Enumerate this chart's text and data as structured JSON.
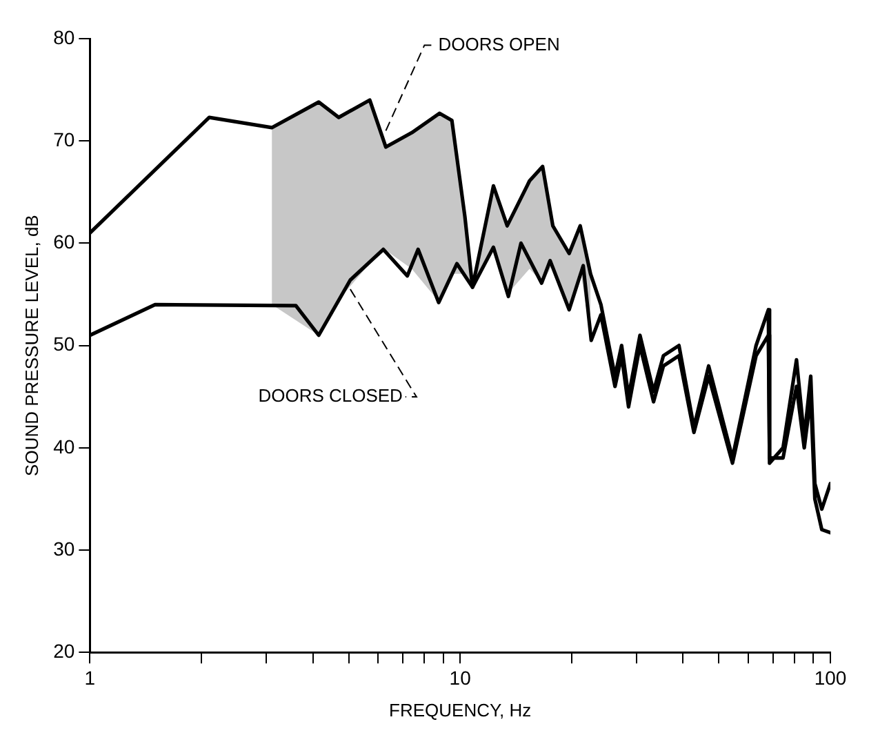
{
  "chart_data": {
    "type": "line",
    "xlabel": "FREQUENCY, Hz",
    "ylabel": "SOUND PRESSURE LEVEL, dB",
    "log": "x",
    "grid": false,
    "legend": false,
    "marker": "none",
    "line_style": "solid",
    "xlim": [
      1,
      100
    ],
    "xticks": [
      1,
      {
        "value": 2,
        "label": null
      },
      {
        "value": 3,
        "label": null
      },
      {
        "value": 4,
        "label": null
      },
      {
        "value": 5,
        "label": null
      },
      {
        "value": 6,
        "label": null
      },
      {
        "value": 7,
        "label": null
      },
      {
        "value": 8,
        "label": null
      },
      {
        "value": 9,
        "label": null
      },
      10,
      {
        "value": 20,
        "label": null
      },
      {
        "value": 30,
        "label": null
      },
      {
        "value": 40,
        "label": null
      },
      {
        "value": 50,
        "label": null
      },
      {
        "value": 60,
        "label": null
      },
      {
        "value": 70,
        "label": null
      },
      {
        "value": 80,
        "label": null
      },
      {
        "value": 90,
        "label": null
      },
      100
    ],
    "ylim": [
      20,
      80
    ],
    "yticks": [
      20,
      30,
      40,
      50,
      60,
      70,
      80
    ],
    "series": [
      {
        "color": "#000000",
        "x": [
          1,
          2.1,
          3.1,
          4.15,
          4.7,
          5.7,
          6.3,
          7.4,
          8.8,
          9.5,
          10.3,
          10.8,
          12.3,
          13.4,
          15.4,
          16.7,
          17.8,
          19.7,
          21.1,
          22.5,
          24,
          26.2,
          27.3,
          28.5,
          30.6,
          33.3,
          35.4,
          39,
          42.8,
          46.9,
          54.4,
          63,
          68,
          68.5,
          74.5,
          81,
          85,
          88.5,
          90.8,
          94.8,
          100
        ],
        "values": [
          61,
          72.3,
          71.3,
          73.8,
          72.3,
          74,
          69.4,
          70.8,
          72.7,
          72,
          62.6,
          55.7,
          65.6,
          61.7,
          66.1,
          67.5,
          61.7,
          59,
          61.7,
          57,
          54,
          47,
          50,
          45,
          51,
          45.5,
          49,
          50,
          42,
          48,
          39,
          50,
          53.5,
          38.5,
          40,
          48.6,
          41,
          47,
          36.5,
          34,
          36.5
        ],
        "upper": [
          null,
          null,
          71.3,
          73.8,
          72.3,
          74,
          69.4,
          70.8,
          72.7,
          72,
          62.6,
          55.7,
          65.6,
          61.7,
          66.1,
          67.5,
          61.7,
          59,
          61.7,
          57,
          null,
          null,
          null,
          null,
          null,
          null,
          null,
          null,
          null,
          null,
          null,
          null,
          null,
          null,
          null,
          null,
          null,
          null,
          null,
          null,
          null
        ],
        "lower": [
          null,
          null,
          54,
          51,
          54.5,
          58,
          59.3,
          57.5,
          54.2,
          57,
          57,
          55.7,
          59.6,
          55,
          57.5,
          56.1,
          58,
          53.5,
          57.5,
          51,
          null,
          null,
          null,
          null,
          null,
          null,
          null,
          null,
          null,
          null,
          null,
          null,
          null,
          null,
          null,
          null,
          null,
          null,
          null,
          null,
          null
        ]
      },
      {
        "color": "#000000",
        "x": [
          1,
          1.5,
          3.6,
          4.15,
          5.05,
          6.2,
          7.2,
          7.7,
          8.75,
          9.8,
          10.8,
          12.3,
          13.5,
          14.6,
          16.6,
          17.5,
          19.7,
          21.5,
          22.6,
          24,
          26.2,
          27.3,
          28.5,
          30.6,
          33.3,
          35.4,
          39,
          42.8,
          46.9,
          54.4,
          63,
          68,
          68.5,
          74.5,
          81,
          85,
          88.5,
          90.8,
          94.8,
          100
        ],
        "values": [
          51,
          54,
          53.9,
          51,
          56.4,
          59.4,
          56.8,
          59.4,
          54.2,
          58,
          55.7,
          59.6,
          54.8,
          60,
          56.1,
          58.3,
          53.5,
          57.8,
          50.5,
          53,
          46,
          49,
          44,
          50,
          44.5,
          48,
          49,
          41.5,
          47,
          38.5,
          49,
          51,
          39,
          39,
          46,
          40,
          45,
          35,
          32,
          31.7
        ]
      }
    ],
    "annotations": [
      {
        "text": "DOORS OPEN",
        "x": 6.3,
        "y": 71
      },
      {
        "text": "DOORS CLOSED",
        "x": 5.05,
        "y": 55.5
      }
    ]
  }
}
